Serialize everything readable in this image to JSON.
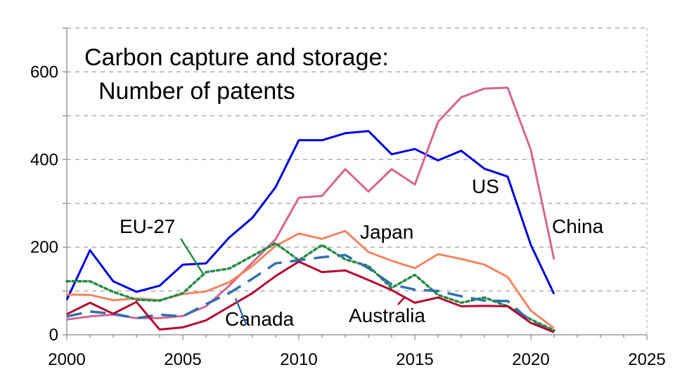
{
  "chart_data": {
    "type": "line",
    "title_line1": "Carbon capture and storage:",
    "title_line2": "Number of patents",
    "xlim": [
      2000,
      2025
    ],
    "ylim": [
      0,
      700
    ],
    "grid": true,
    "x_ticks": [
      "2000",
      "2005",
      "2010",
      "2015",
      "2020",
      "2025"
    ],
    "y_ticks": [
      "0",
      "200",
      "400",
      "600"
    ],
    "x": [
      2000,
      2001,
      2002,
      2003,
      2004,
      2005,
      2006,
      2007,
      2008,
      2009,
      2010,
      2011,
      2012,
      2013,
      2014,
      2015,
      2016,
      2017,
      2018,
      2019,
      2020,
      2021
    ],
    "series": [
      {
        "name": "US",
        "color": "#0000dd",
        "dash": "solid",
        "values": [
          80,
          193,
          122,
          98,
          112,
          160,
          163,
          222,
          267,
          337,
          444,
          444,
          460,
          465,
          412,
          424,
          398,
          420,
          379,
          361,
          205,
          93
        ]
      },
      {
        "name": "China",
        "color": "#d6658f",
        "dash": "solid",
        "values": [
          35,
          42,
          46,
          38,
          38,
          43,
          65,
          112,
          165,
          218,
          313,
          317,
          378,
          327,
          378,
          343,
          486,
          542,
          562,
          564,
          422,
          172
        ]
      },
      {
        "name": "Japan",
        "color": "#f4845f",
        "dash": "solid",
        "values": [
          92,
          91,
          79,
          83,
          79,
          93,
          99,
          120,
          157,
          203,
          231,
          219,
          237,
          189,
          169,
          152,
          184,
          173,
          160,
          132,
          55,
          15
        ]
      },
      {
        "name": "EU-27",
        "color": "#238b45",
        "dash": "dotted",
        "values": [
          122,
          122,
          98,
          80,
          78,
          95,
          143,
          151,
          180,
          209,
          170,
          205,
          172,
          157,
          107,
          137,
          91,
          73,
          85,
          65,
          35,
          10
        ]
      },
      {
        "name": "Canada",
        "color": "#3070b0",
        "dash": "dashed",
        "values": [
          42,
          53,
          48,
          38,
          46,
          42,
          70,
          95,
          128,
          163,
          170,
          177,
          182,
          152,
          115,
          103,
          100,
          88,
          78,
          77,
          30,
          5
        ]
      },
      {
        "name": "Australia",
        "color": "#b5082f",
        "dash": "solid",
        "values": [
          47,
          73,
          48,
          75,
          12,
          17,
          33,
          64,
          95,
          134,
          167,
          143,
          147,
          125,
          102,
          73,
          85,
          65,
          66,
          65,
          27,
          6
        ]
      }
    ]
  }
}
